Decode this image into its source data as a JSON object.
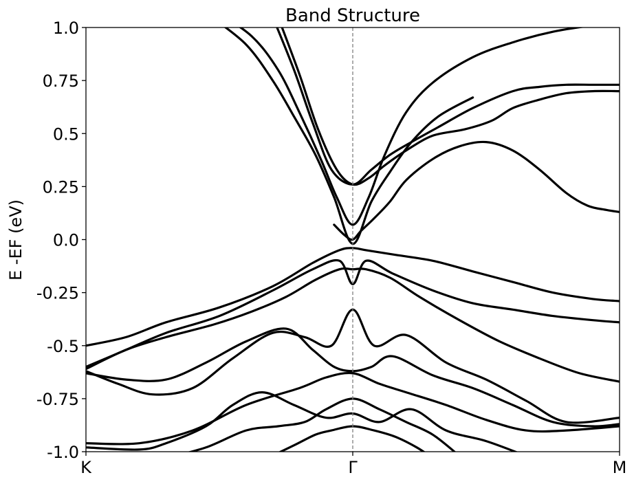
{
  "chart_data": {
    "type": "line",
    "title": "Band Structure",
    "xlabel": "",
    "ylabel": "E -EF (eV)",
    "ylim": [
      -1.0,
      1.0
    ],
    "xlim": [
      0,
      2
    ],
    "xticks": [
      {
        "x": 0,
        "label": "K"
      },
      {
        "x": 1,
        "label": "Γ"
      },
      {
        "x": 2,
        "label": "M"
      }
    ],
    "yticks": [
      {
        "y": 1.0,
        "label": "1.0"
      },
      {
        "y": 0.75,
        "label": "0.75"
      },
      {
        "y": 0.5,
        "label": "0.5"
      },
      {
        "y": 0.25,
        "label": "0.25"
      },
      {
        "y": 0.0,
        "label": "0.0"
      },
      {
        "y": -0.25,
        "label": "-0.25"
      },
      {
        "y": -0.5,
        "label": "-0.5"
      },
      {
        "y": -0.75,
        "label": "-0.75"
      },
      {
        "y": -1.0,
        "label": "-1.0"
      }
    ],
    "vlines": [
      {
        "x": 1,
        "style": "dashed",
        "color": "#808080"
      }
    ],
    "grid": false,
    "line_color": "#000000",
    "series": [
      {
        "x": [
          0.48,
          0.62,
          0.72,
          0.8,
          0.88,
          0.94,
          1.0,
          1.06,
          1.12,
          1.2,
          1.3,
          1.45,
          1.6,
          1.75,
          1.9,
          2.0
        ],
        "y": [
          1.08,
          0.96,
          0.8,
          0.6,
          0.38,
          0.2,
          0.07,
          0.2,
          0.4,
          0.6,
          0.74,
          0.86,
          0.93,
          0.98,
          1.01,
          1.02
        ]
      },
      {
        "x": [
          0.47,
          0.6,
          0.7,
          0.78,
          0.86,
          0.93,
          1.0,
          1.07,
          1.14,
          1.22,
          1.32,
          1.45
        ],
        "y": [
          1.05,
          0.92,
          0.75,
          0.58,
          0.4,
          0.2,
          -0.02,
          0.18,
          0.32,
          0.46,
          0.58,
          0.67
        ]
      },
      {
        "x": [
          0.7,
          0.78,
          0.85,
          0.92,
          1.0,
          1.07,
          1.14,
          1.22,
          1.32,
          1.45,
          1.6,
          1.7,
          1.8,
          1.9,
          2.0
        ],
        "y": [
          1.05,
          0.8,
          0.55,
          0.33,
          0.26,
          0.33,
          0.4,
          0.46,
          0.53,
          0.62,
          0.7,
          0.72,
          0.73,
          0.73,
          0.73
        ]
      },
      {
        "x": [
          0.72,
          0.8,
          0.87,
          0.94,
          1.0,
          1.06,
          1.12,
          1.2,
          1.3,
          1.42,
          1.52,
          1.6,
          1.7,
          1.8,
          1.9,
          2.0
        ],
        "y": [
          1.05,
          0.78,
          0.52,
          0.33,
          0.26,
          0.29,
          0.35,
          0.42,
          0.49,
          0.52,
          0.56,
          0.62,
          0.66,
          0.69,
          0.7,
          0.7
        ]
      },
      {
        "x": [
          0.93,
          0.97,
          1.0,
          1.03,
          1.08,
          1.14,
          1.2,
          1.3,
          1.4,
          1.5,
          1.6,
          1.7,
          1.8,
          1.88,
          1.95,
          2.0
        ],
        "y": [
          0.07,
          0.02,
          0.0,
          0.04,
          0.1,
          0.18,
          0.28,
          0.38,
          0.44,
          0.46,
          0.42,
          0.33,
          0.22,
          0.16,
          0.14,
          0.13
        ]
      },
      {
        "x": [
          0.0,
          0.15,
          0.3,
          0.5,
          0.7,
          0.85,
          0.95,
          1.0,
          1.05,
          1.15,
          1.3,
          1.45,
          1.6,
          1.75,
          1.9,
          2.0
        ],
        "y": [
          -0.5,
          -0.46,
          -0.39,
          -0.32,
          -0.22,
          -0.11,
          -0.05,
          -0.04,
          -0.05,
          -0.07,
          -0.1,
          -0.15,
          -0.2,
          -0.25,
          -0.28,
          -0.29
        ]
      },
      {
        "x": [
          0.0,
          0.15,
          0.3,
          0.5,
          0.7,
          0.85,
          0.95,
          1.0,
          1.05,
          1.15,
          1.3,
          1.45,
          1.6,
          1.75,
          1.9,
          2.0
        ],
        "y": [
          -0.6,
          -0.52,
          -0.44,
          -0.36,
          -0.24,
          -0.14,
          -0.1,
          -0.21,
          -0.1,
          -0.16,
          -0.24,
          -0.3,
          -0.33,
          -0.36,
          -0.38,
          -0.39
        ]
      },
      {
        "x": [
          0.0,
          0.15,
          0.3,
          0.48,
          0.62,
          0.75,
          0.86,
          0.95,
          1.0,
          1.05,
          1.14,
          1.25,
          1.4,
          1.55,
          1.7,
          1.85,
          2.0
        ],
        "y": [
          -0.61,
          -0.52,
          -0.46,
          -0.4,
          -0.34,
          -0.27,
          -0.19,
          -0.14,
          -0.14,
          -0.14,
          -0.18,
          -0.27,
          -0.38,
          -0.48,
          -0.56,
          -0.63,
          -0.67
        ]
      },
      {
        "x": [
          0.0,
          0.12,
          0.25,
          0.4,
          0.55,
          0.7,
          0.82,
          0.92,
          1.0,
          1.08,
          1.2,
          1.35,
          1.5,
          1.65,
          1.8,
          2.0
        ],
        "y": [
          -0.62,
          -0.68,
          -0.73,
          -0.7,
          -0.56,
          -0.44,
          -0.46,
          -0.5,
          -0.33,
          -0.5,
          -0.45,
          -0.58,
          -0.66,
          -0.76,
          -0.86,
          -0.84
        ]
      },
      {
        "x": [
          0.0,
          0.15,
          0.3,
          0.45,
          0.6,
          0.75,
          0.85,
          0.93,
          1.0,
          1.07,
          1.15,
          1.3,
          1.45,
          1.6,
          1.75,
          1.9,
          2.0
        ],
        "y": [
          -0.63,
          -0.66,
          -0.66,
          -0.58,
          -0.48,
          -0.42,
          -0.52,
          -0.6,
          -0.62,
          -0.6,
          -0.55,
          -0.64,
          -0.7,
          -0.78,
          -0.86,
          -0.88,
          -0.87
        ]
      },
      {
        "x": [
          0.0,
          0.2,
          0.4,
          0.6,
          0.8,
          0.9,
          1.0,
          1.1,
          1.2,
          1.35,
          1.5,
          1.65,
          1.8,
          2.0
        ],
        "y": [
          -0.96,
          -0.96,
          -0.9,
          -0.78,
          -0.7,
          -0.65,
          -0.63,
          -0.68,
          -0.72,
          -0.78,
          -0.85,
          -0.9,
          -0.9,
          -0.88
        ]
      },
      {
        "x": [
          0.0,
          0.2,
          0.3,
          0.45,
          0.55,
          0.66,
          0.78,
          0.9,
          1.0,
          1.1,
          1.22,
          1.35,
          1.5,
          1.65
        ],
        "y": [
          -0.98,
          -0.99,
          -0.96,
          -0.88,
          -0.78,
          -0.72,
          -0.78,
          -0.84,
          -0.82,
          -0.86,
          -0.8,
          -0.9,
          -0.95,
          -1.02
        ]
      },
      {
        "x": [
          0.3,
          0.45,
          0.6,
          0.72,
          0.82,
          0.9,
          1.0,
          1.1,
          1.2,
          1.3,
          1.4
        ],
        "y": [
          -1.03,
          -0.98,
          -0.9,
          -0.88,
          -0.86,
          -0.8,
          -0.75,
          -0.8,
          -0.86,
          -0.92,
          -1.02
        ]
      },
      {
        "x": [
          0.68,
          0.78,
          0.86,
          0.92,
          1.0,
          1.08,
          1.16,
          1.24,
          1.3
        ],
        "y": [
          -1.03,
          -0.97,
          -0.92,
          -0.9,
          -0.88,
          -0.9,
          -0.93,
          -0.98,
          -1.03
        ]
      }
    ]
  }
}
